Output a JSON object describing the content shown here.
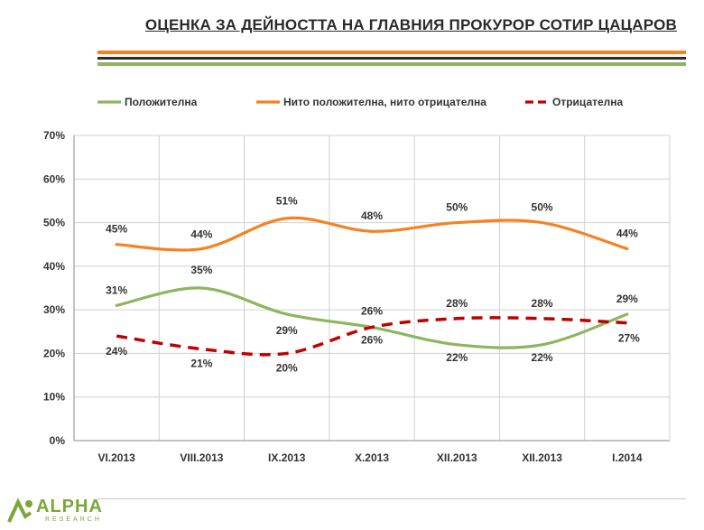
{
  "header": {
    "title": "ОЦЕНКА ЗА ДЕЙНОСТТА НА ГЛАВНИЯ ПРОКУРОР СОТИР ЦАЦАРОВ"
  },
  "colors": {
    "accent_orange": "#F58220",
    "accent_green": "#7DAE4B",
    "accent_dark": "#2a2a2a",
    "negative_red": "#C00000"
  },
  "logo": {
    "name": "ALPHA",
    "sub": "RESEARCH"
  },
  "chart_data": {
    "type": "line",
    "categories": [
      "VI.2013",
      "VIII.2013",
      "IX.2013",
      "X.2013",
      "XII.2013",
      "XII.2013",
      "I.2014"
    ],
    "ylim": [
      0,
      70
    ],
    "yticks": [
      "0%",
      "10%",
      "20%",
      "30%",
      "40%",
      "50%",
      "60%",
      "70%"
    ],
    "grid": true,
    "legend_position": "top",
    "series": [
      {
        "name": "Положителна",
        "values": [
          31,
          35,
          29,
          26,
          22,
          22,
          29
        ],
        "labels": [
          "31%",
          "35%",
          "29%",
          "26%",
          "22%",
          "22%",
          "29%"
        ],
        "color": "#8DB560",
        "dash": false
      },
      {
        "name": "Нито положителна, нито отрицателна",
        "values": [
          45,
          44,
          51,
          48,
          50,
          50,
          44
        ],
        "labels": [
          "45%",
          "44%",
          "51%",
          "48%",
          "50%",
          "50%",
          "44%"
        ],
        "color": "#F58220",
        "dash": false
      },
      {
        "name": "Отрицателна",
        "values": [
          24,
          21,
          20,
          26,
          28,
          28,
          27
        ],
        "labels": [
          "24%",
          "21%",
          "20%",
          "26%",
          "28%",
          "28%",
          "27%"
        ],
        "color": "#C00000",
        "dash": true
      }
    ]
  }
}
